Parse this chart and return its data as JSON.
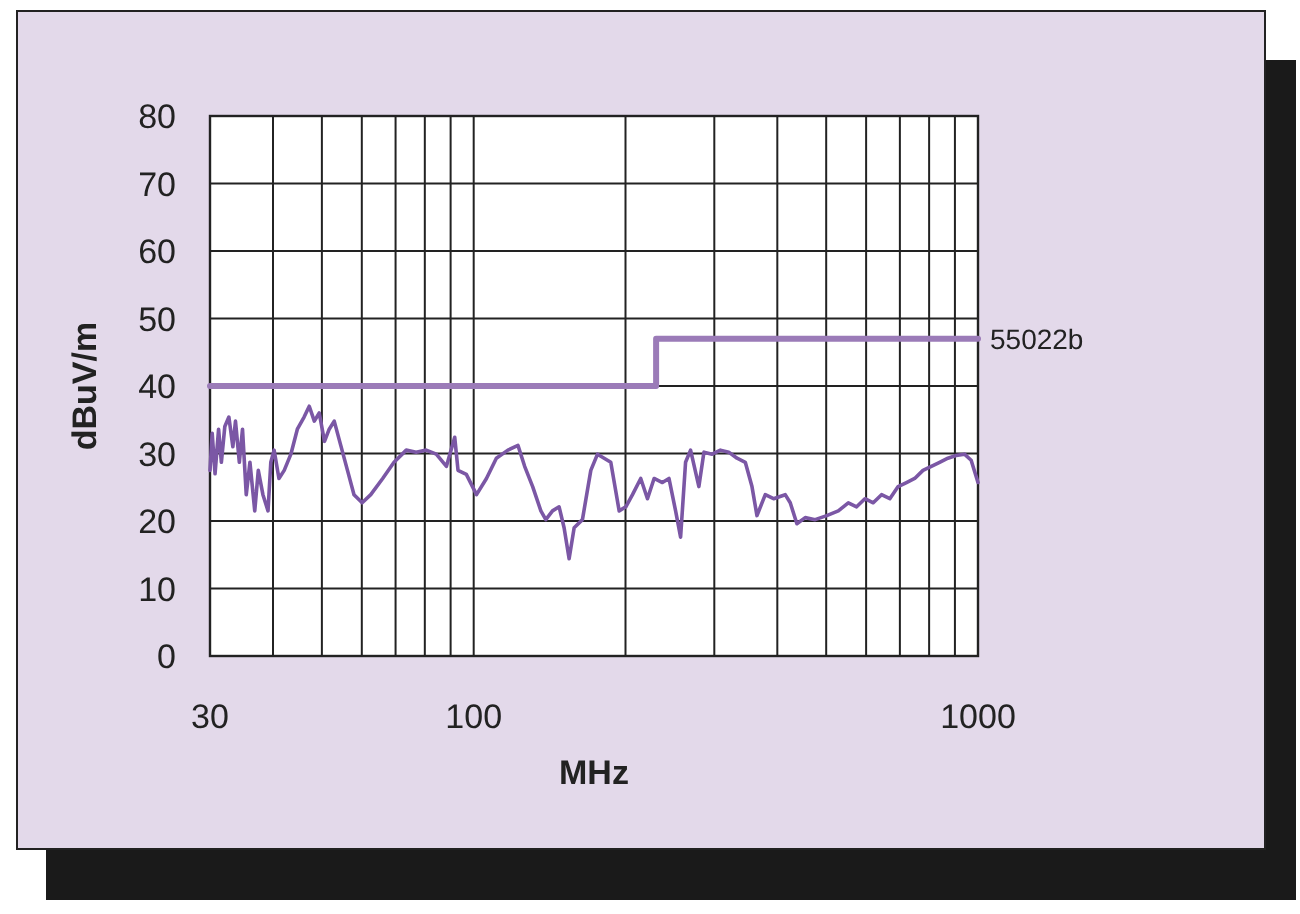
{
  "chart_data": {
    "type": "line",
    "xlabel": "MHz",
    "ylabel": "dBuV/m",
    "log": "x",
    "grid": true,
    "xlim": [
      30,
      1000
    ],
    "ylim": [
      0,
      80
    ],
    "xticks": [
      30,
      {
        "value": 40,
        "label": null
      },
      {
        "value": 50,
        "label": null
      },
      {
        "value": 60,
        "label": null
      },
      {
        "value": 70,
        "label": null
      },
      {
        "value": 80,
        "label": null
      },
      {
        "value": 90,
        "label": null
      },
      100,
      {
        "value": 200,
        "label": null
      },
      {
        "value": 300,
        "label": null
      },
      {
        "value": 400,
        "label": null
      },
      {
        "value": 500,
        "label": null
      },
      {
        "value": 600,
        "label": null
      },
      {
        "value": 700,
        "label": null
      },
      {
        "value": 800,
        "label": null
      },
      {
        "value": 900,
        "label": null
      },
      1000
    ],
    "yticks": [
      0,
      10,
      20,
      30,
      40,
      50,
      60,
      70,
      80
    ],
    "series": [
      {
        "color": "#7b57a5",
        "x": [
          30,
          30.3,
          30.7,
          31.2,
          31.6,
          32.1,
          32.7,
          33.3,
          33.7,
          34.3,
          34.8,
          35.4,
          36,
          36.8,
          37.4,
          38.2,
          39.1,
          39.6,
          40.2,
          41.1,
          42.1,
          43.4,
          44.7,
          46.1,
          47.2,
          48.3,
          49.4,
          50.6,
          51.7,
          52.9,
          54.5,
          56.2,
          57.9,
          60.1,
          62.5,
          66,
          69.5,
          73.5,
          76.9,
          80.5,
          84.3,
          88.3,
          91.7,
          93.1,
          96.7,
          101.3,
          106,
          110.9,
          116.9,
          122.4,
          126.2,
          130.9,
          135.9,
          139,
          143.3,
          147.7,
          151.1,
          154.6,
          158.2,
          164.3,
          170.7,
          176,
          181.4,
          187,
          194.3,
          200.3,
          206.5,
          214.4,
          221.1,
          227.9,
          236.7,
          243.9,
          251.4,
          257.2,
          263.1,
          269.2,
          279.6,
          286.1,
          297,
          308.5,
          320.4,
          332.8,
          345.6,
          356.3,
          364.5,
          378.6,
          393.2,
          414.7,
          424.3,
          437.4,
          454.3,
          475.4,
          501.2,
          528.5,
          553.1,
          574.5,
          596.7,
          619.8,
          643.7,
          668.6,
          694.4,
          721.3,
          749,
          777.9,
          808,
          839.2,
          871.6,
          905.1,
          940.2,
          969.2,
          1000
        ],
        "values": [
          27.5,
          33,
          27,
          33.6,
          28.7,
          34,
          35.4,
          31,
          34.8,
          28.7,
          33.6,
          23.9,
          28.7,
          21.5,
          27.5,
          23.9,
          21.5,
          28.7,
          30.5,
          26.3,
          27.5,
          29.9,
          33.6,
          35.4,
          37,
          34.8,
          36,
          31.8,
          33.6,
          34.8,
          31.2,
          27.5,
          23.9,
          22.7,
          23.9,
          26.3,
          28.7,
          30.5,
          30.2,
          30.5,
          29.9,
          28.1,
          32.4,
          27.5,
          26.9,
          23.9,
          26.3,
          29.3,
          30.5,
          31.2,
          28.1,
          25.1,
          21.5,
          20.2,
          21.5,
          22.1,
          19,
          14.4,
          19,
          20.2,
          27.5,
          29.9,
          29.3,
          28.7,
          21.5,
          22.1,
          23.9,
          26.3,
          23.3,
          26.3,
          25.7,
          26.3,
          21.5,
          17.6,
          28.7,
          30.5,
          25.1,
          30.2,
          29.9,
          30.5,
          30.2,
          29.3,
          28.7,
          25.1,
          20.8,
          23.9,
          23.3,
          23.9,
          22.7,
          19.6,
          20.5,
          20.2,
          20.8,
          21.5,
          22.7,
          22.1,
          23.3,
          22.7,
          23.9,
          23.3,
          25.1,
          25.7,
          26.3,
          27.5,
          28.1,
          28.7,
          29.3,
          29.7,
          29.9,
          29,
          25.7
        ]
      },
      {
        "name": "55022b",
        "color": "#9b7bb8",
        "x": [
          30,
          230,
          230,
          1000
        ],
        "values": [
          40,
          40,
          47,
          47
        ]
      }
    ]
  }
}
